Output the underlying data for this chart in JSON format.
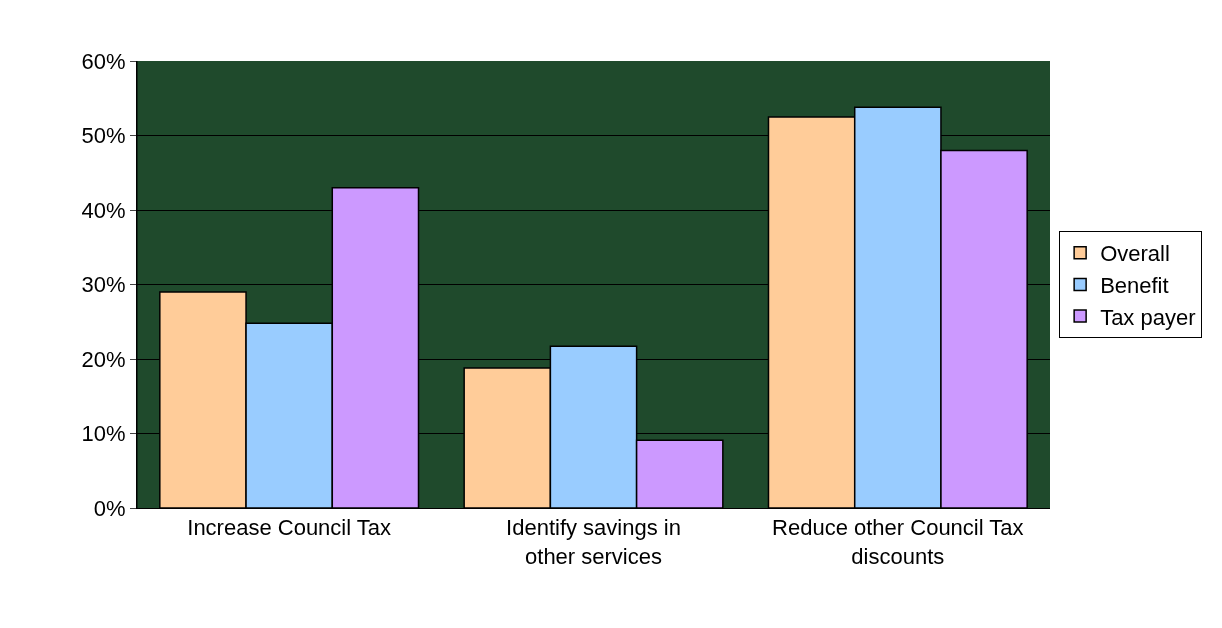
{
  "chart_data": {
    "type": "bar",
    "categories": [
      "Increase Council Tax",
      "Identify savings in other services",
      "Reduce other Council Tax discounts"
    ],
    "series": [
      {
        "name": "Overall",
        "color": "#ffcc99",
        "values": [
          29,
          18.8,
          52.5
        ]
      },
      {
        "name": "Benefit",
        "color": "#99ccff",
        "values": [
          24.8,
          21.7,
          53.8
        ]
      },
      {
        "name": "Tax payer",
        "color": "#cc99ff",
        "values": [
          43,
          9.1,
          48
        ]
      }
    ],
    "ylim": [
      0,
      60
    ],
    "yticks": [
      {
        "value": 0,
        "label": "0%"
      },
      {
        "value": 10,
        "label": "10%"
      },
      {
        "value": 20,
        "label": "20%"
      },
      {
        "value": 30,
        "label": "30%"
      },
      {
        "value": 40,
        "label": "40%"
      },
      {
        "value": 50,
        "label": "50%"
      },
      {
        "value": 60,
        "label": "60%"
      }
    ],
    "grid": "y",
    "legend": "right"
  }
}
